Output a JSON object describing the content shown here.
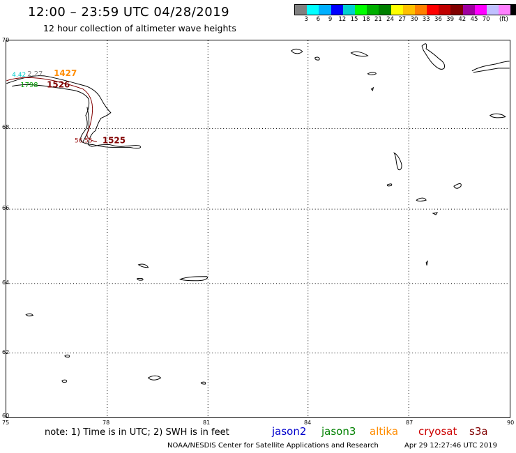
{
  "header": {
    "title": "12:00 – 23:59 UTC 04/28/2019",
    "subtitle": "12 hour collection of altimeter wave heights"
  },
  "colorbar": {
    "colors": [
      "#808080",
      "#00ffff",
      "#00b0ff",
      "#0000ff",
      "#00d0d0",
      "#00ff00",
      "#00b000",
      "#008000",
      "#ffff00",
      "#ffc000",
      "#ff8000",
      "#ff0000",
      "#c00000",
      "#800000",
      "#a000a0",
      "#ff00ff",
      "#c0c0ff",
      "#ff80ff",
      "#000000"
    ],
    "labels": [
      "3",
      "6",
      "9",
      "12",
      "15",
      "18",
      "21",
      "24",
      "27",
      "30",
      "33",
      "36",
      "39",
      "42",
      "45",
      "70",
      "(ft)"
    ]
  },
  "axes": {
    "lat_labels": [
      "70",
      "68",
      "66",
      "64",
      "62",
      "60"
    ],
    "lon_labels": [
      "75",
      "78",
      "81",
      "84",
      "87",
      "90"
    ]
  },
  "observations": [
    {
      "text": "4.42",
      "color": "#00cccc"
    },
    {
      "text": "2.27",
      "color": "#808080"
    },
    {
      "text": "1427",
      "color": "#ff8c00"
    },
    {
      "text": "1798",
      "color": "#00a000"
    },
    {
      "text": "1526",
      "color": "#800000"
    },
    {
      "text": "56.55",
      "color": "#a02020"
    },
    {
      "text": "1525",
      "color": "#800000"
    }
  ],
  "footer": {
    "note": "note: 1) Time is in UTC; 2) SWH is in feet",
    "satellites": [
      {
        "name": "jason2",
        "color": "#0000cc"
      },
      {
        "name": "jason3",
        "color": "#008000"
      },
      {
        "name": "altika",
        "color": "#ff8c00"
      },
      {
        "name": "cryosat",
        "color": "#cc0000"
      },
      {
        "name": "s3a",
        "color": "#800000"
      }
    ],
    "credit": "NOAA/NESDIS Center for Satellite Applications and Research",
    "timestamp": "Apr 29 12:27:46 UTC 2019"
  }
}
